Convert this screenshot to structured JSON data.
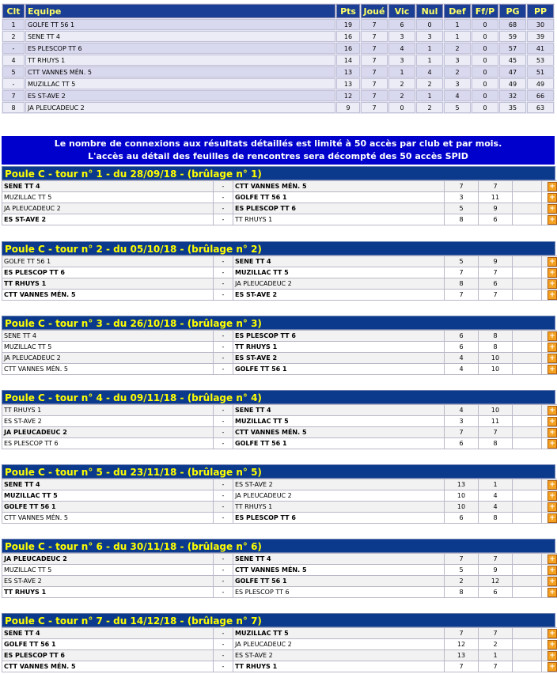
{
  "standings": {
    "headers": [
      "Clt",
      "Equipe",
      "Pts",
      "Joué",
      "Vic",
      "Nul",
      "Def",
      "Ff/P",
      "PG",
      "PP"
    ],
    "rows": [
      [
        "1",
        "GOLFE TT 56 1",
        "19",
        "7",
        "6",
        "0",
        "1",
        "0",
        "68",
        "30"
      ],
      [
        "2",
        "SENE TT 4",
        "16",
        "7",
        "3",
        "3",
        "1",
        "0",
        "59",
        "39"
      ],
      [
        "-",
        "ES PLESCOP TT 6",
        "16",
        "7",
        "4",
        "1",
        "2",
        "0",
        "57",
        "41"
      ],
      [
        "4",
        "TT RHUYS 1",
        "14",
        "7",
        "3",
        "1",
        "3",
        "0",
        "45",
        "53"
      ],
      [
        "5",
        "CTT VANNES MÉN. 5",
        "13",
        "7",
        "1",
        "4",
        "2",
        "0",
        "47",
        "51"
      ],
      [
        "-",
        "MUZILLAC TT 5",
        "13",
        "7",
        "2",
        "2",
        "3",
        "0",
        "49",
        "49"
      ],
      [
        "7",
        "ES ST-AVE 2",
        "12",
        "7",
        "2",
        "1",
        "4",
        "0",
        "32",
        "66"
      ],
      [
        "8",
        "JA PLEUCADEUC 2",
        "9",
        "7",
        "0",
        "2",
        "5",
        "0",
        "35",
        "63"
      ]
    ]
  },
  "notice": {
    "line1": "Le nombre de connexions aux résultats détaillés est limité à 50 accès par club et par mois.",
    "line2": "L'accès au détail des feuilles de rencontres sera décompté des 50 accès SPID"
  },
  "rounds": [
    {
      "title": "Poule C - tour n° 1 - du 28/09/18 - (brûlage n° 1)",
      "matches": [
        {
          "home": "SENE TT 4",
          "away": "CTT VANNES MÉN. 5",
          "hs": "7",
          "as": "7",
          "hb": true,
          "ab": true
        },
        {
          "home": "MUZILLAC TT 5",
          "away": "GOLFE TT 56 1",
          "hs": "3",
          "as": "11",
          "hb": false,
          "ab": true
        },
        {
          "home": "JA PLEUCADEUC 2",
          "away": "ES PLESCOP TT 6",
          "hs": "5",
          "as": "9",
          "hb": false,
          "ab": true
        },
        {
          "home": "ES ST-AVE 2",
          "away": "TT RHUYS 1",
          "hs": "8",
          "as": "6",
          "hb": true,
          "ab": false
        }
      ]
    },
    {
      "title": "Poule C - tour n° 2 - du 05/10/18 - (brûlage n° 2)",
      "matches": [
        {
          "home": "GOLFE TT 56 1",
          "away": "SENE TT 4",
          "hs": "5",
          "as": "9",
          "hb": false,
          "ab": true
        },
        {
          "home": "ES PLESCOP TT 6",
          "away": "MUZILLAC TT 5",
          "hs": "7",
          "as": "7",
          "hb": true,
          "ab": true
        },
        {
          "home": "TT RHUYS 1",
          "away": "JA PLEUCADEUC 2",
          "hs": "8",
          "as": "6",
          "hb": true,
          "ab": false
        },
        {
          "home": "CTT VANNES MÉN. 5",
          "away": "ES ST-AVE 2",
          "hs": "7",
          "as": "7",
          "hb": true,
          "ab": true
        }
      ]
    },
    {
      "title": "Poule C - tour n° 3 - du 26/10/18 - (brûlage n° 3)",
      "matches": [
        {
          "home": "SENE TT 4",
          "away": "ES PLESCOP TT 6",
          "hs": "6",
          "as": "8",
          "hb": false,
          "ab": true
        },
        {
          "home": "MUZILLAC TT 5",
          "away": "TT RHUYS 1",
          "hs": "6",
          "as": "8",
          "hb": false,
          "ab": true
        },
        {
          "home": "JA PLEUCADEUC 2",
          "away": "ES ST-AVE 2",
          "hs": "4",
          "as": "10",
          "hb": false,
          "ab": true
        },
        {
          "home": "CTT VANNES MÉN. 5",
          "away": "GOLFE TT 56 1",
          "hs": "4",
          "as": "10",
          "hb": false,
          "ab": true
        }
      ]
    },
    {
      "title": "Poule C - tour n° 4 - du 09/11/18 - (brûlage n° 4)",
      "matches": [
        {
          "home": "TT RHUYS 1",
          "away": "SENE TT 4",
          "hs": "4",
          "as": "10",
          "hb": false,
          "ab": true
        },
        {
          "home": "ES ST-AVE 2",
          "away": "MUZILLAC TT 5",
          "hs": "3",
          "as": "11",
          "hb": false,
          "ab": true
        },
        {
          "home": "JA PLEUCADEUC 2",
          "away": "CTT VANNES MÉN. 5",
          "hs": "7",
          "as": "7",
          "hb": true,
          "ab": true
        },
        {
          "home": "ES PLESCOP TT 6",
          "away": "GOLFE TT 56 1",
          "hs": "6",
          "as": "8",
          "hb": false,
          "ab": true
        }
      ]
    },
    {
      "title": "Poule C - tour n° 5 - du 23/11/18 - (brûlage n° 5)",
      "matches": [
        {
          "home": "SENE TT 4",
          "away": "ES ST-AVE 2",
          "hs": "13",
          "as": "1",
          "hb": true,
          "ab": false
        },
        {
          "home": "MUZILLAC TT 5",
          "away": "JA PLEUCADEUC 2",
          "hs": "10",
          "as": "4",
          "hb": true,
          "ab": false
        },
        {
          "home": "GOLFE TT 56 1",
          "away": "TT RHUYS 1",
          "hs": "10",
          "as": "4",
          "hb": true,
          "ab": false
        },
        {
          "home": "CTT VANNES MÉN. 5",
          "away": "ES PLESCOP TT 6",
          "hs": "6",
          "as": "8",
          "hb": false,
          "ab": true
        }
      ]
    },
    {
      "title": "Poule C - tour n° 6 - du 30/11/18 - (brûlage n° 6)",
      "matches": [
        {
          "home": "JA PLEUCADEUC 2",
          "away": "SENE TT 4",
          "hs": "7",
          "as": "7",
          "hb": true,
          "ab": true
        },
        {
          "home": "MUZILLAC TT 5",
          "away": "CTT VANNES MÉN. 5",
          "hs": "5",
          "as": "9",
          "hb": false,
          "ab": true
        },
        {
          "home": "ES ST-AVE 2",
          "away": "GOLFE TT 56 1",
          "hs": "2",
          "as": "12",
          "hb": false,
          "ab": true
        },
        {
          "home": "TT RHUYS 1",
          "away": "ES PLESCOP TT 6",
          "hs": "8",
          "as": "6",
          "hb": true,
          "ab": false
        }
      ]
    },
    {
      "title": "Poule C - tour n° 7 - du 14/12/18 - (brûlage n° 7)",
      "matches": [
        {
          "home": "SENE TT 4",
          "away": "MUZILLAC TT 5",
          "hs": "7",
          "as": "7",
          "hb": true,
          "ab": true
        },
        {
          "home": "GOLFE TT 56 1",
          "away": "JA PLEUCADEUC 2",
          "hs": "12",
          "as": "2",
          "hb": true,
          "ab": false
        },
        {
          "home": "ES PLESCOP TT 6",
          "away": "ES ST-AVE 2",
          "hs": "13",
          "as": "1",
          "hb": true,
          "ab": false
        },
        {
          "home": "CTT VANNES MÉN. 5",
          "away": "TT RHUYS 1",
          "hs": "7",
          "as": "7",
          "hb": true,
          "ab": true
        }
      ]
    }
  ],
  "ui": {
    "separator": "-",
    "detail_icon": "plus-icon",
    "detail_glyph": "+"
  }
}
